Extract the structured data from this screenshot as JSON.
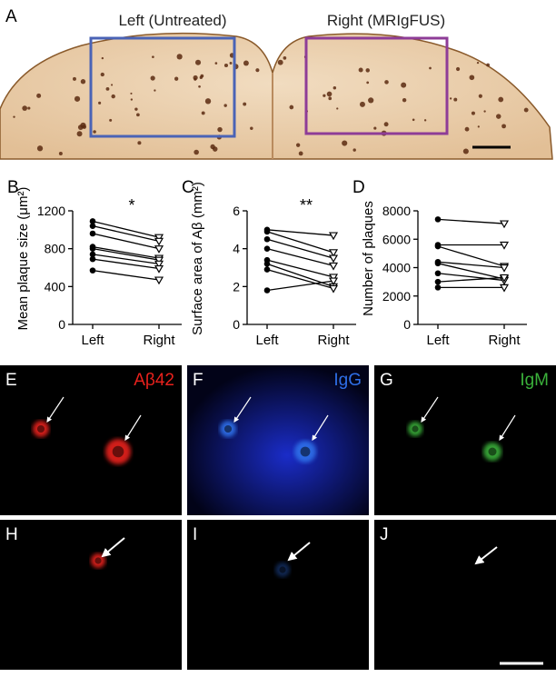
{
  "panel_a": {
    "label": "A",
    "left_title": "Left (Untreated)",
    "right_title": "Right (MRIgFUS)"
  },
  "chart_data": [
    {
      "type": "line",
      "panel": "B",
      "ylabel": "Mean plaque size (μm²)",
      "annotation": "*",
      "categories": [
        "Left",
        "Right"
      ],
      "color": "#000000",
      "series": [
        {
          "values": [
            1090,
            920
          ]
        },
        {
          "values": [
            1040,
            880
          ]
        },
        {
          "values": [
            960,
            800
          ]
        },
        {
          "values": [
            820,
            700
          ]
        },
        {
          "values": [
            800,
            680
          ]
        },
        {
          "values": [
            740,
            640
          ]
        },
        {
          "values": [
            690,
            590
          ]
        },
        {
          "values": [
            570,
            470
          ]
        }
      ],
      "ylim": [
        0,
        1200
      ],
      "yticks": [
        0,
        400,
        800,
        1200
      ]
    },
    {
      "type": "line",
      "panel": "C",
      "ylabel": "Surface area of Aβ (mm²)",
      "annotation": "**",
      "categories": [
        "Left",
        "Right"
      ],
      "color": "#000000",
      "series": [
        {
          "values": [
            5.0,
            4.7
          ]
        },
        {
          "values": [
            4.9,
            3.8
          ]
        },
        {
          "values": [
            4.5,
            3.5
          ]
        },
        {
          "values": [
            4.0,
            3.1
          ]
        },
        {
          "values": [
            3.4,
            2.5
          ]
        },
        {
          "values": [
            3.2,
            2.0
          ]
        },
        {
          "values": [
            2.9,
            1.9
          ]
        },
        {
          "values": [
            1.8,
            2.3
          ]
        }
      ],
      "ylim": [
        0,
        6
      ],
      "yticks": [
        0,
        2,
        4,
        6
      ]
    },
    {
      "type": "line",
      "panel": "D",
      "ylabel": "Number of plaques",
      "categories": [
        "Left",
        "Right"
      ],
      "color": "#000000",
      "series": [
        {
          "values": [
            7400,
            7100
          ]
        },
        {
          "values": [
            5600,
            5600
          ]
        },
        {
          "values": [
            5500,
            4100
          ]
        },
        {
          "values": [
            4400,
            4000
          ]
        },
        {
          "values": [
            4300,
            3200
          ]
        },
        {
          "values": [
            3600,
            3100
          ]
        },
        {
          "values": [
            3000,
            3300
          ]
        },
        {
          "values": [
            2600,
            2600
          ]
        }
      ],
      "ylim": [
        0,
        8000
      ],
      "yticks": [
        0,
        2000,
        4000,
        6000,
        8000
      ]
    }
  ],
  "fluorescence": {
    "panels": [
      {
        "label": "E",
        "stain": "Aβ42",
        "color": "#e8211c"
      },
      {
        "label": "F",
        "stain": "IgG",
        "color": "#2f6fe8"
      },
      {
        "label": "G",
        "stain": "IgM",
        "color": "#3ab03a"
      },
      {
        "label": "H",
        "color": "#e8211c"
      },
      {
        "label": "I",
        "color": "#2f6fe8"
      },
      {
        "label": "J",
        "color": "#3ab03a"
      }
    ]
  }
}
